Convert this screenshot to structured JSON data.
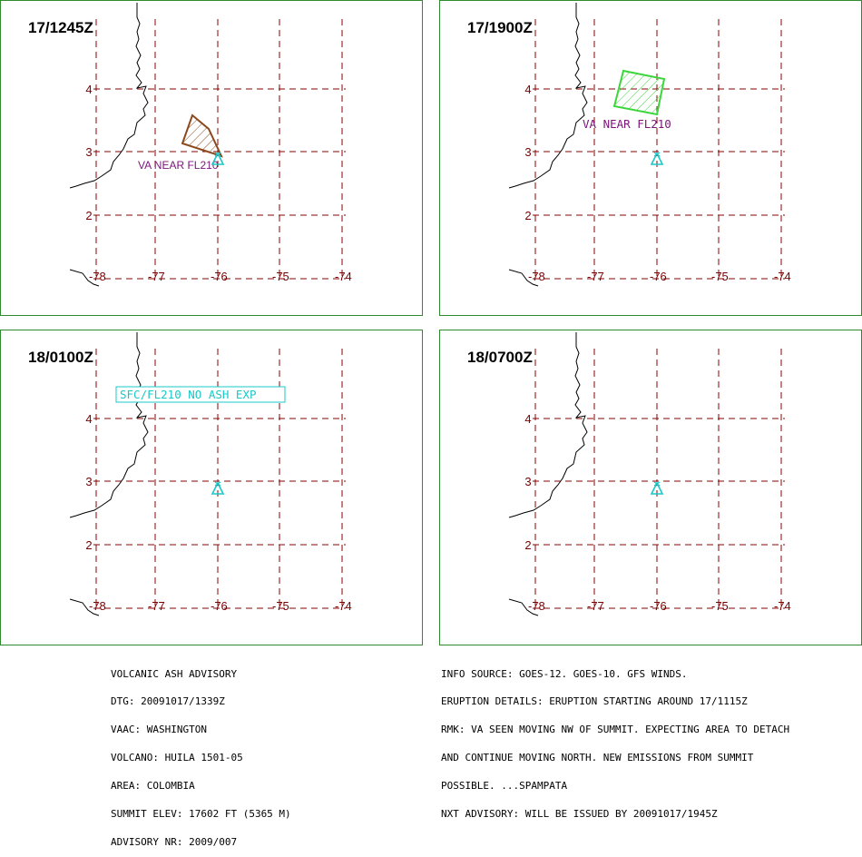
{
  "panels": [
    {
      "id": "p1",
      "title": "17/1245Z",
      "ash_color": "#8b4a1e",
      "ash_label": "VA NEAR FL210",
      "ash_label_style": "sans"
    },
    {
      "id": "p2",
      "title": "17/1900Z",
      "ash_color": "#3cd63c",
      "ash_label": "VA NEAR FL210",
      "ash_label_style": "mono"
    },
    {
      "id": "p3",
      "title": "18/0100Z",
      "no_ash_label": "SFC/FL210 NO ASH EXP"
    },
    {
      "id": "p4",
      "title": "18/0700Z"
    }
  ],
  "axes": {
    "lon_labels": [
      "-78",
      "-77",
      "-76",
      "-75",
      "-74"
    ],
    "lat_labels": [
      "4",
      "3",
      "2"
    ],
    "grid_color": "#8b0000"
  },
  "colors": {
    "frame": "#2e8b2e",
    "volcano": "#19c8c8",
    "label_purple": "#7a157a"
  },
  "advisory_left": [
    "VOLCANIC ASH ADVISORY",
    "DTG: 20091017/1339Z",
    "VAAC: WASHINGTON",
    "VOLCANO: HUILA 1501-05",
    "AREA: COLOMBIA",
    "SUMMIT ELEV: 17602 FT (5365 M)",
    "ADVISORY NR: 2009/007"
  ],
  "advisory_right": [
    "INFO SOURCE: GOES-12. GOES-10. GFS WINDS.",
    "ERUPTION DETAILS: ERUPTION STARTING AROUND 17/1115Z",
    "RMK: VA SEEN MOVING NW OF SUMMIT. EXPECTING AREA TO DETACH",
    "AND CONTINUE MOVING NORTH. NEW EMISSIONS FROM SUMMIT",
    "POSSIBLE. ...SPAMPATA",
    "NXT ADVISORY: WILL BE ISSUED BY 20091017/1945Z"
  ]
}
